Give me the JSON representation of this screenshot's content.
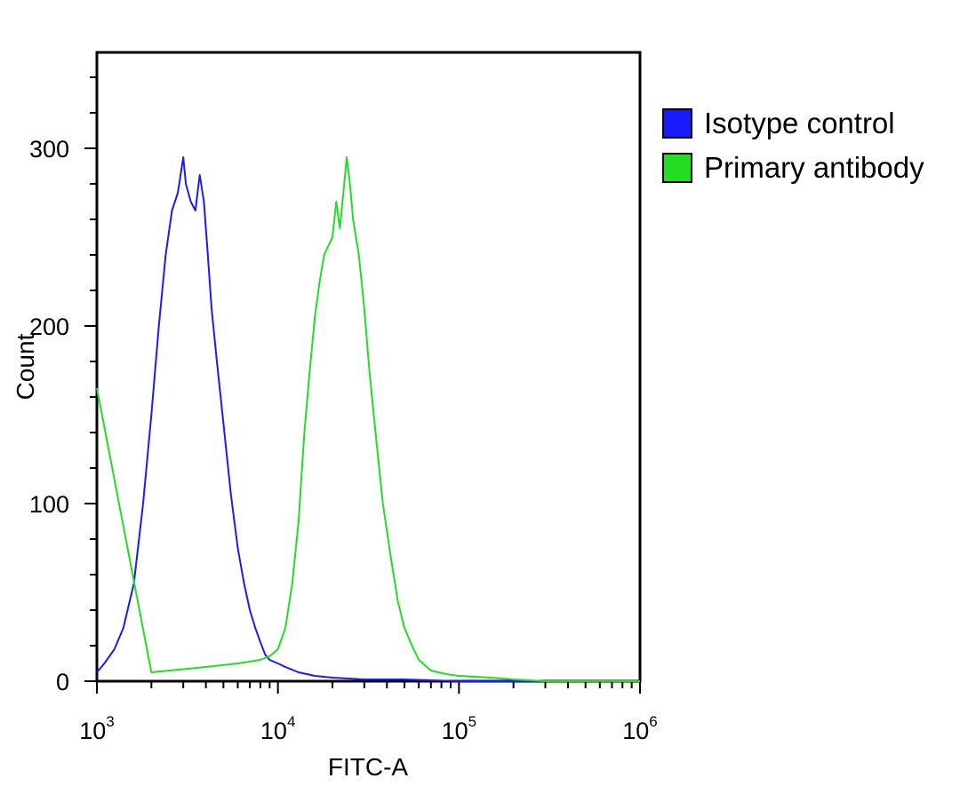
{
  "chart_data": {
    "type": "line",
    "title": "",
    "xlabel": "FITC-A",
    "ylabel": "Count",
    "x_scale": "log",
    "xlim": [
      1000,
      1000000
    ],
    "ylim": [
      0,
      350
    ],
    "x_ticks": [
      {
        "value": 1000,
        "base": "10",
        "exp": "3"
      },
      {
        "value": 10000,
        "base": "10",
        "exp": "4"
      },
      {
        "value": 100000,
        "base": "10",
        "exp": "5"
      },
      {
        "value": 1000000,
        "base": "10",
        "exp": "6"
      }
    ],
    "y_ticks": [
      0,
      100,
      200,
      300
    ],
    "grid": false,
    "legend_position": "right",
    "series": [
      {
        "name": "Isotype control",
        "color": "#1a1aff",
        "x": [
          1000,
          1100,
          1250,
          1400,
          1600,
          1800,
          2000,
          2200,
          2400,
          2600,
          2800,
          3000,
          3100,
          3300,
          3500,
          3700,
          3900,
          4100,
          4300,
          4600,
          5000,
          5500,
          6000,
          6500,
          7000,
          7500,
          8000,
          8500,
          9000,
          10000,
          11000,
          13000,
          16000,
          20000,
          30000,
          50000,
          100000,
          200000,
          1000000
        ],
        "y": [
          5,
          10,
          18,
          30,
          55,
          100,
          150,
          200,
          240,
          265,
          275,
          295,
          280,
          270,
          265,
          285,
          270,
          240,
          210,
          180,
          145,
          105,
          75,
          55,
          40,
          30,
          22,
          15,
          12,
          10,
          8,
          5,
          3,
          2,
          1,
          1,
          0,
          0,
          0
        ]
      },
      {
        "name": "Primary antibody",
        "color": "#22dd22",
        "x": [
          1000,
          2000,
          4000,
          6000,
          8000,
          9000,
          10000,
          11000,
          12000,
          13000,
          14000,
          15000,
          16000,
          17000,
          18000,
          20000,
          21000,
          22000,
          23000,
          24000,
          25000,
          26000,
          28000,
          30000,
          32000,
          35000,
          38000,
          42000,
          46000,
          50000,
          55000,
          60000,
          70000,
          85000,
          100000,
          150000,
          200000,
          300000,
          1000000
        ],
        "y": [
          165,
          5,
          8,
          10,
          12,
          14,
          18,
          30,
          55,
          90,
          140,
          175,
          205,
          225,
          240,
          250,
          270,
          255,
          275,
          295,
          280,
          260,
          240,
          210,
          175,
          135,
          100,
          70,
          45,
          30,
          20,
          12,
          6,
          4,
          3,
          2,
          1,
          0,
          0
        ]
      }
    ]
  }
}
